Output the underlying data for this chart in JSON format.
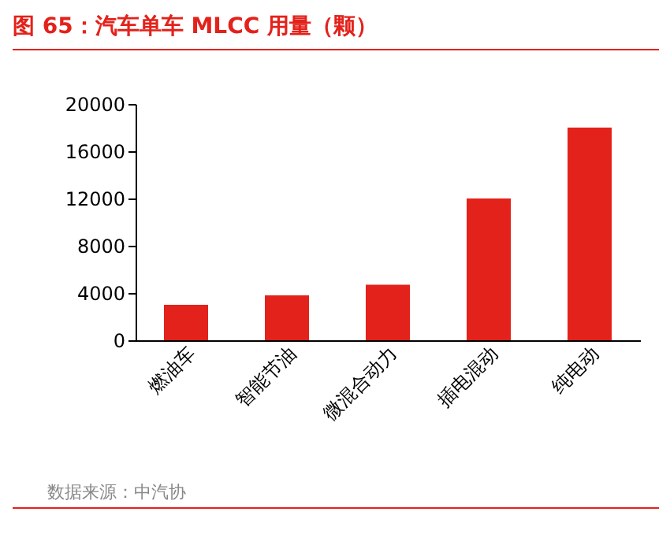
{
  "chart_data": {
    "type": "bar",
    "title": "图 65：汽车单车 MLCC 用量（颗）",
    "categories": [
      "燃油车",
      "智能节油",
      "微混合动力",
      "插电混动",
      "纯电动"
    ],
    "values": [
      3000,
      3800,
      4700,
      12000,
      18000
    ],
    "color": "#e3221b",
    "ylim": [
      0,
      20000
    ],
    "yticks": [
      0,
      4000,
      8000,
      12000,
      16000,
      20000
    ],
    "grid": false,
    "annotations": [
      "数据来源：中汽协"
    ]
  }
}
